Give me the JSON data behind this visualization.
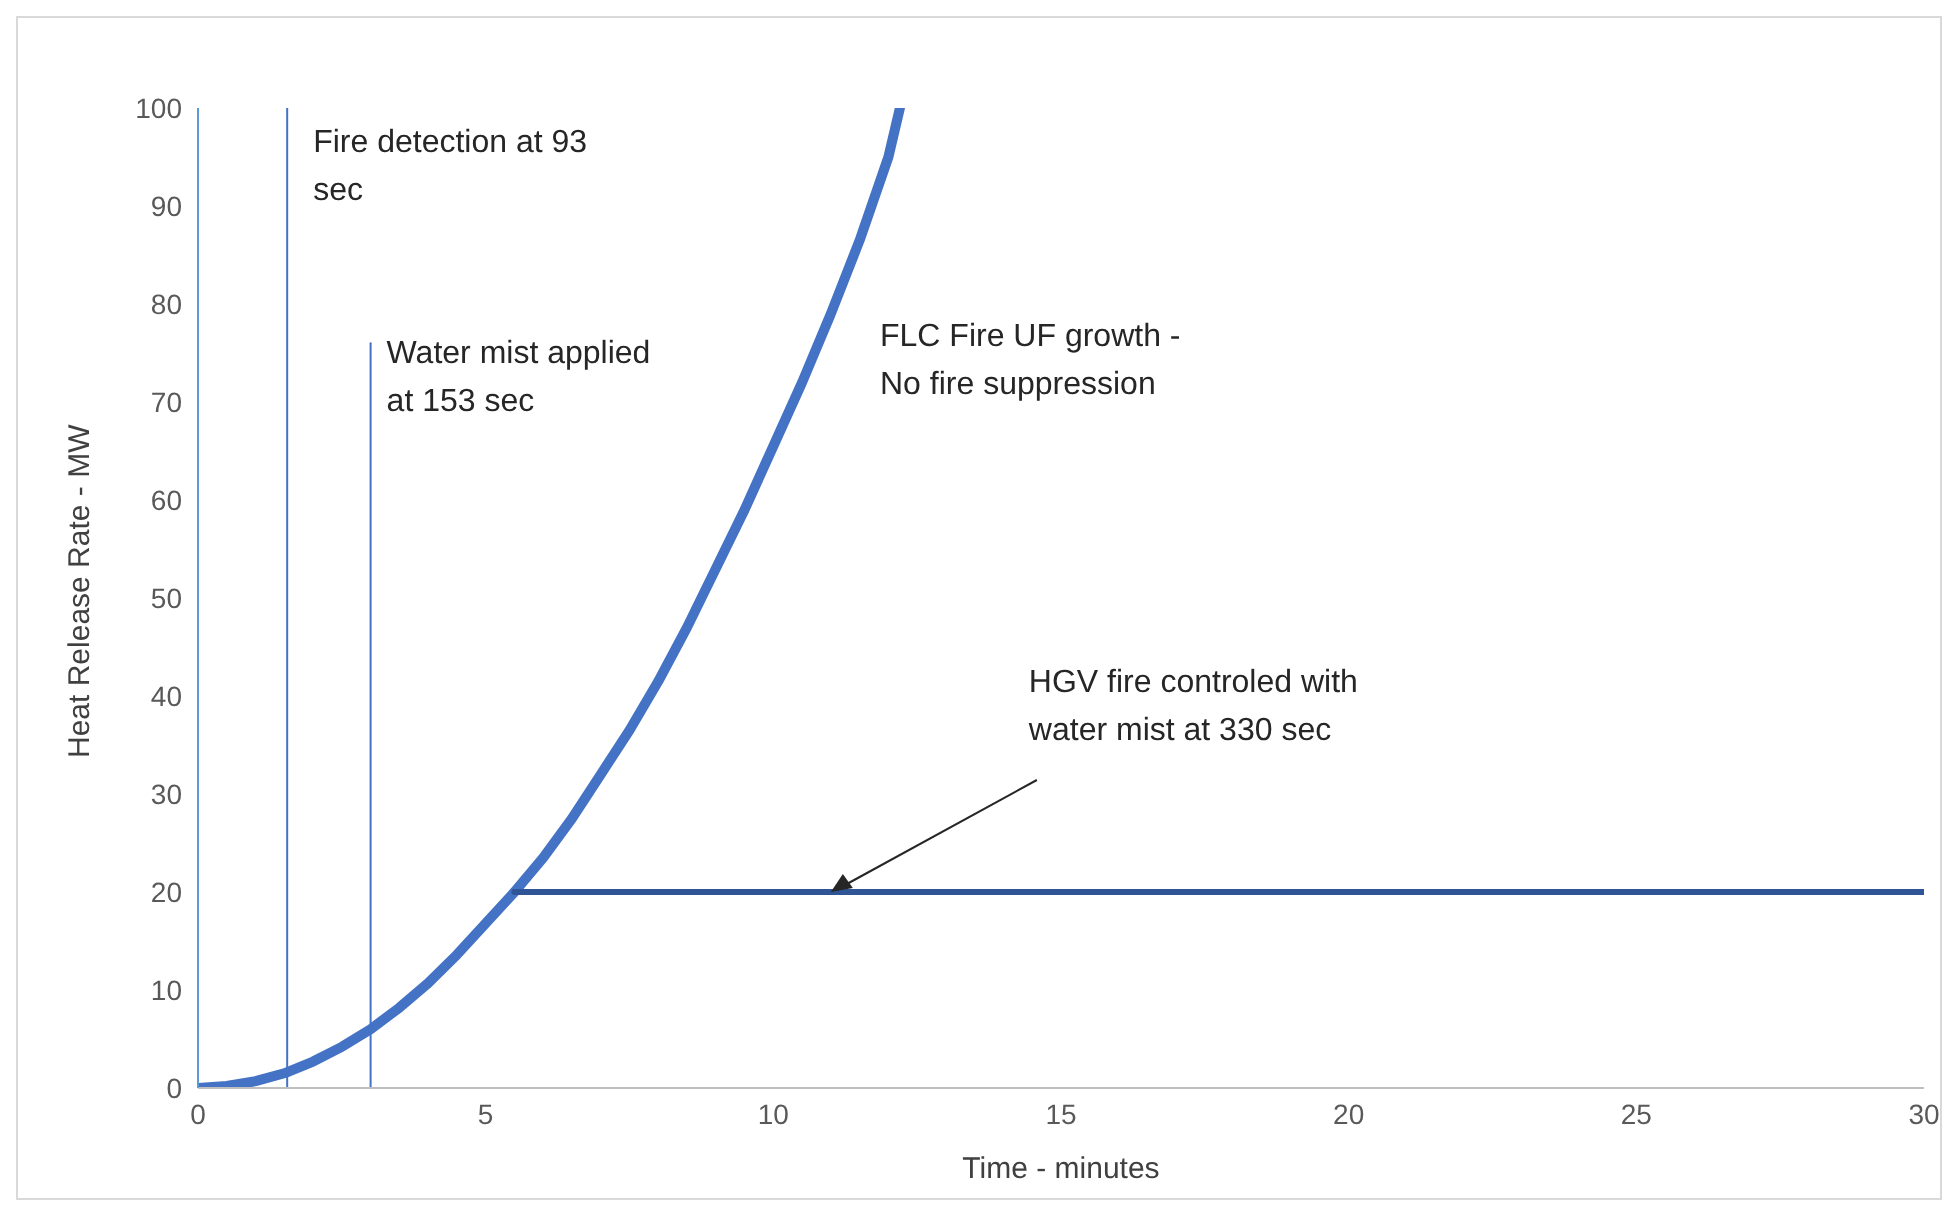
{
  "chart_data": {
    "type": "line",
    "xlabel": "Time - minutes",
    "ylabel": "Heat Release Rate - MW",
    "xlim": [
      0,
      30
    ],
    "xticks": [
      0,
      5,
      10,
      15,
      20,
      25,
      30
    ],
    "ylim": [
      0,
      100
    ],
    "yticks": [
      0,
      10,
      20,
      30,
      40,
      50,
      60,
      70,
      80,
      90,
      100
    ],
    "marker": "none",
    "line_style": "solid",
    "series": [
      {
        "color": "#4472c4",
        "x": [
          0,
          0.5,
          1,
          1.5,
          2,
          2.5,
          3,
          3.5,
          4,
          4.5,
          5,
          5.5,
          6,
          6.5,
          7,
          7.5,
          8,
          8.5,
          9,
          9.5,
          10,
          10.5,
          11,
          11.5,
          12,
          12.2
        ],
        "values": [
          0,
          0.2,
          0.7,
          1.5,
          2.7,
          4.2,
          6,
          8.2,
          10.7,
          13.6,
          16.8,
          20,
          23.5,
          27.5,
          32,
          36.5,
          41.5,
          47,
          53,
          59,
          65.5,
          72,
          79,
          86.5,
          95,
          100
        ]
      },
      {
        "color": "#2f5597",
        "x": [
          5.5,
          30
        ],
        "values": [
          20,
          20
        ]
      },
      {
        "color": "#4472c4",
        "x": [
          1.55,
          1.55
        ],
        "values": [
          0,
          100
        ]
      },
      {
        "color": "#4472c4",
        "x": [
          3,
          3
        ],
        "values": [
          0,
          76
        ]
      }
    ],
    "annotations": [
      {
        "text": "Fire detection at 93 sec",
        "x": 1.55,
        "y": 100
      },
      {
        "text": "Water mist applied at 153 sec",
        "x": 3,
        "y": 76
      },
      "FLC Fire UF growth - No fire suppression",
      {
        "text": "HGV fire controled with water mist at 330 sec",
        "x": 11,
        "y": 20
      }
    ]
  }
}
